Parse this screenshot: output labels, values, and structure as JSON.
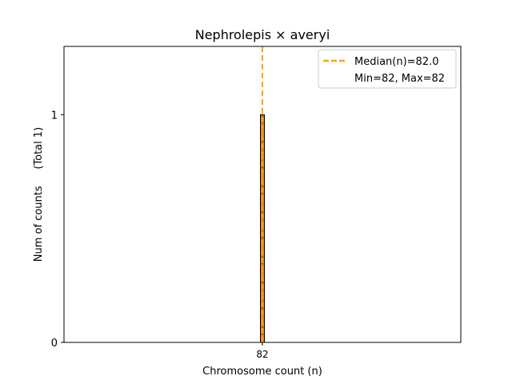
{
  "chart_data": {
    "type": "bar",
    "title": "Nephrolepis × averyi",
    "xlabel": "Chromosome count (n)",
    "ylabel": "Num of counts     (Total 1)",
    "categories": [
      "82"
    ],
    "values": [
      1
    ],
    "x_tick_labels": [
      "82"
    ],
    "y_tick_labels": [
      "0",
      "1"
    ],
    "ylim": [
      0,
      1.3
    ],
    "median": 82.0,
    "min": 82,
    "max": 82,
    "legend": {
      "position": "top-right",
      "entries": [
        {
          "label": "Median(n)=82.0",
          "style": "dashed",
          "color": "#ffa500"
        },
        {
          "label": "Min=82, Max=82",
          "style": "none",
          "color": "#ffffff"
        }
      ]
    },
    "colors": {
      "bar_fill": "#e8833a",
      "bar_edge": "#000000",
      "bar_dots": "#2e7d32",
      "median_line": "#ffa500"
    }
  }
}
